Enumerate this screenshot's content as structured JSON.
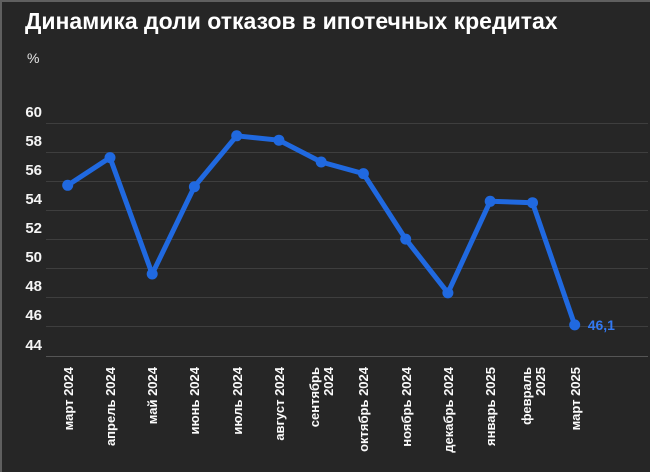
{
  "title": "Динамика доли отказов в ипотечных кредитах",
  "unit_label": "%",
  "colors": {
    "background": "#262626",
    "border": "#5f5f5f",
    "line": "#2069e0",
    "point": "#2069e0",
    "annotation": "#3279f2",
    "grid": "#3e3e3e",
    "baseline": "#555555",
    "axis_text": "#f5f5f5",
    "title_text": "#ffffff"
  },
  "chart_data": {
    "type": "line",
    "title": "Динамика доли отказов в ипотечных кредитах",
    "ylabel": "%",
    "xlabel": "",
    "categories": [
      "март 2024",
      "апрель 2024",
      "май 2024",
      "июнь 2024",
      "июль 2024",
      "август 2024",
      "сентябрь 2024",
      "октябрь 2024",
      "ноябрь 2024",
      "декабрь 2024",
      "январь 2025",
      "февраль 2025",
      "март 2025"
    ],
    "wrapped_category_indices": [
      6,
      11
    ],
    "values": [
      55.7,
      57.6,
      49.6,
      55.6,
      59.1,
      58.8,
      57.3,
      56.5,
      52.0,
      48.3,
      54.6,
      54.5,
      46.1
    ],
    "yticks": [
      60,
      58,
      56,
      54,
      52,
      50,
      48,
      46,
      44
    ],
    "ylim": [
      44,
      60
    ],
    "grid": "horizontal",
    "legend": "none",
    "last_point_label": "46,1",
    "x_tick_rotation": -90
  }
}
